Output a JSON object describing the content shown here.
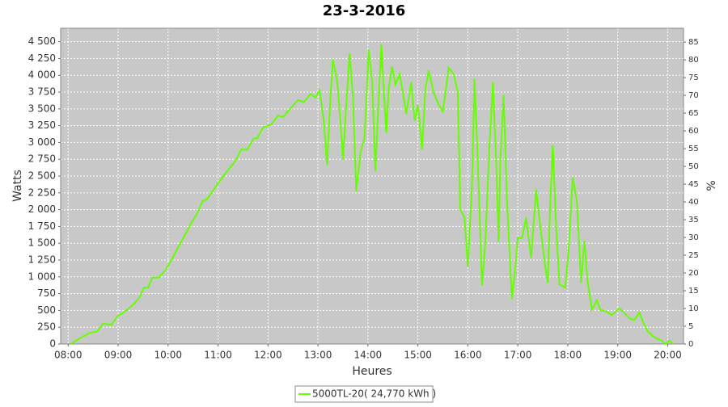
{
  "chart_data": {
    "type": "line",
    "title": "23-3-2016",
    "x_label": "Heures",
    "y_label": "Watts",
    "y2_label": "%",
    "xlim": [
      "07:51",
      "20:19"
    ],
    "xticks": [
      "08:00",
      "09:00",
      "10:00",
      "11:00",
      "12:00",
      "13:00",
      "14:00",
      "15:00",
      "16:00",
      "17:00",
      "18:00",
      "19:00",
      "20:00"
    ],
    "ylim": [
      0,
      4700
    ],
    "yticks": [
      0,
      250,
      500,
      750,
      {
        "value": 1000,
        "label": "1 000"
      },
      {
        "value": 1250,
        "label": "1 250"
      },
      {
        "value": 1500,
        "label": "1 500"
      },
      {
        "value": 1750,
        "label": "1 750"
      },
      {
        "value": 2000,
        "label": "2 000"
      },
      {
        "value": 2250,
        "label": "2 250"
      },
      {
        "value": 2500,
        "label": "2 500"
      },
      {
        "value": 2750,
        "label": "2 750"
      },
      {
        "value": 3000,
        "label": "3 000"
      },
      {
        "value": 3250,
        "label": "3 250"
      },
      {
        "value": 3500,
        "label": "3 500"
      },
      {
        "value": 3750,
        "label": "3 750"
      },
      {
        "value": 4000,
        "label": "4 000"
      },
      {
        "value": 4250,
        "label": "4 250"
      },
      {
        "value": 4500,
        "label": "4 500"
      }
    ],
    "y2lim": [
      0,
      88.9
    ],
    "y2ticks": [
      0,
      5,
      10,
      15,
      20,
      25,
      30,
      35,
      40,
      45,
      50,
      55,
      60,
      65,
      70,
      75,
      80,
      85
    ],
    "grid": true,
    "legend": "bottom",
    "x": [
      "08:03",
      "08:16",
      "08:25",
      "08:35",
      "08:42",
      "08:52",
      "08:59",
      "09:09",
      "09:19",
      "09:26",
      "09:31",
      "09:36",
      "09:41",
      "09:49",
      "09:58",
      "10:07",
      "10:17",
      "10:27",
      "10:36",
      "10:41",
      "10:47",
      "10:53",
      "11:01",
      "11:10",
      "11:20",
      "11:28",
      "11:35",
      "11:43",
      "11:47",
      "11:54",
      "12:04",
      "12:12",
      "12:18",
      "12:28",
      "12:36",
      "12:43",
      "12:51",
      "12:57",
      "13:02",
      "13:07",
      "13:11",
      "13:15",
      "13:18",
      "13:23",
      "13:27",
      "13:30",
      "13:34",
      "13:38",
      "13:42",
      "13:46",
      "13:51",
      "13:56",
      "14:01",
      "14:05",
      "14:09",
      "14:13",
      "14:16",
      "14:19",
      "14:22",
      "14:25",
      "14:29",
      "14:33",
      "14:38",
      "14:42",
      "14:46",
      "14:52",
      "14:56",
      "15:00",
      "15:05",
      "15:09",
      "15:13",
      "15:19",
      "15:25",
      "15:30",
      "15:37",
      "15:43",
      "15:48",
      "15:51",
      "15:56",
      "16:00",
      "16:05",
      "16:08",
      "16:12",
      "16:17",
      "16:21",
      "16:26",
      "16:30",
      "16:34",
      "16:37",
      "16:39",
      "16:43",
      "16:47",
      "16:53",
      "16:57",
      "17:00",
      "17:05",
      "17:10",
      "17:16",
      "17:22",
      "17:28",
      "17:33",
      "17:36",
      "17:39",
      "17:42",
      "17:46",
      "17:50",
      "17:57",
      "18:01",
      "18:06",
      "18:11",
      "18:16",
      "18:20",
      "18:24",
      "18:29",
      "18:35",
      "18:39",
      "18:47",
      "18:53",
      "19:02",
      "19:09",
      "19:14",
      "19:20",
      "19:26",
      "19:31",
      "19:36",
      "19:42",
      "19:47",
      "19:53",
      "19:57",
      "20:02",
      "20:07"
    ],
    "series": [
      {
        "name": "5000TL-20( 24,770 kWh )",
        "color": "#66ff00",
        "values": [
          0,
          100,
          160,
          190,
          300,
          290,
          410,
          490,
          600,
          700,
          840,
          840,
          990,
          990,
          1120,
          1320,
          1550,
          1780,
          1970,
          2120,
          2160,
          2270,
          2410,
          2560,
          2710,
          2900,
          2890,
          3060,
          3060,
          3220,
          3270,
          3400,
          3380,
          3520,
          3630,
          3600,
          3720,
          3670,
          3780,
          3320,
          2660,
          3680,
          4230,
          3920,
          3320,
          2740,
          3560,
          4330,
          3680,
          2270,
          2840,
          3080,
          4380,
          3920,
          2570,
          3680,
          4460,
          3800,
          3140,
          3800,
          4130,
          3860,
          4020,
          3740,
          3420,
          3900,
          3320,
          3560,
          2900,
          3800,
          4070,
          3740,
          3560,
          3460,
          4110,
          4020,
          3740,
          2000,
          1880,
          1150,
          2360,
          3950,
          2720,
          870,
          1520,
          2960,
          3900,
          2720,
          1520,
          2720,
          3710,
          2120,
          670,
          1150,
          1580,
          1580,
          1880,
          1280,
          2300,
          1640,
          1150,
          910,
          2120,
          2960,
          1760,
          890,
          840,
          1400,
          2480,
          2120,
          910,
          1540,
          910,
          510,
          650,
          510,
          480,
          430,
          530,
          450,
          380,
          360,
          470,
          310,
          190,
          120,
          80,
          50,
          0,
          50,
          0
        ]
      }
    ]
  }
}
